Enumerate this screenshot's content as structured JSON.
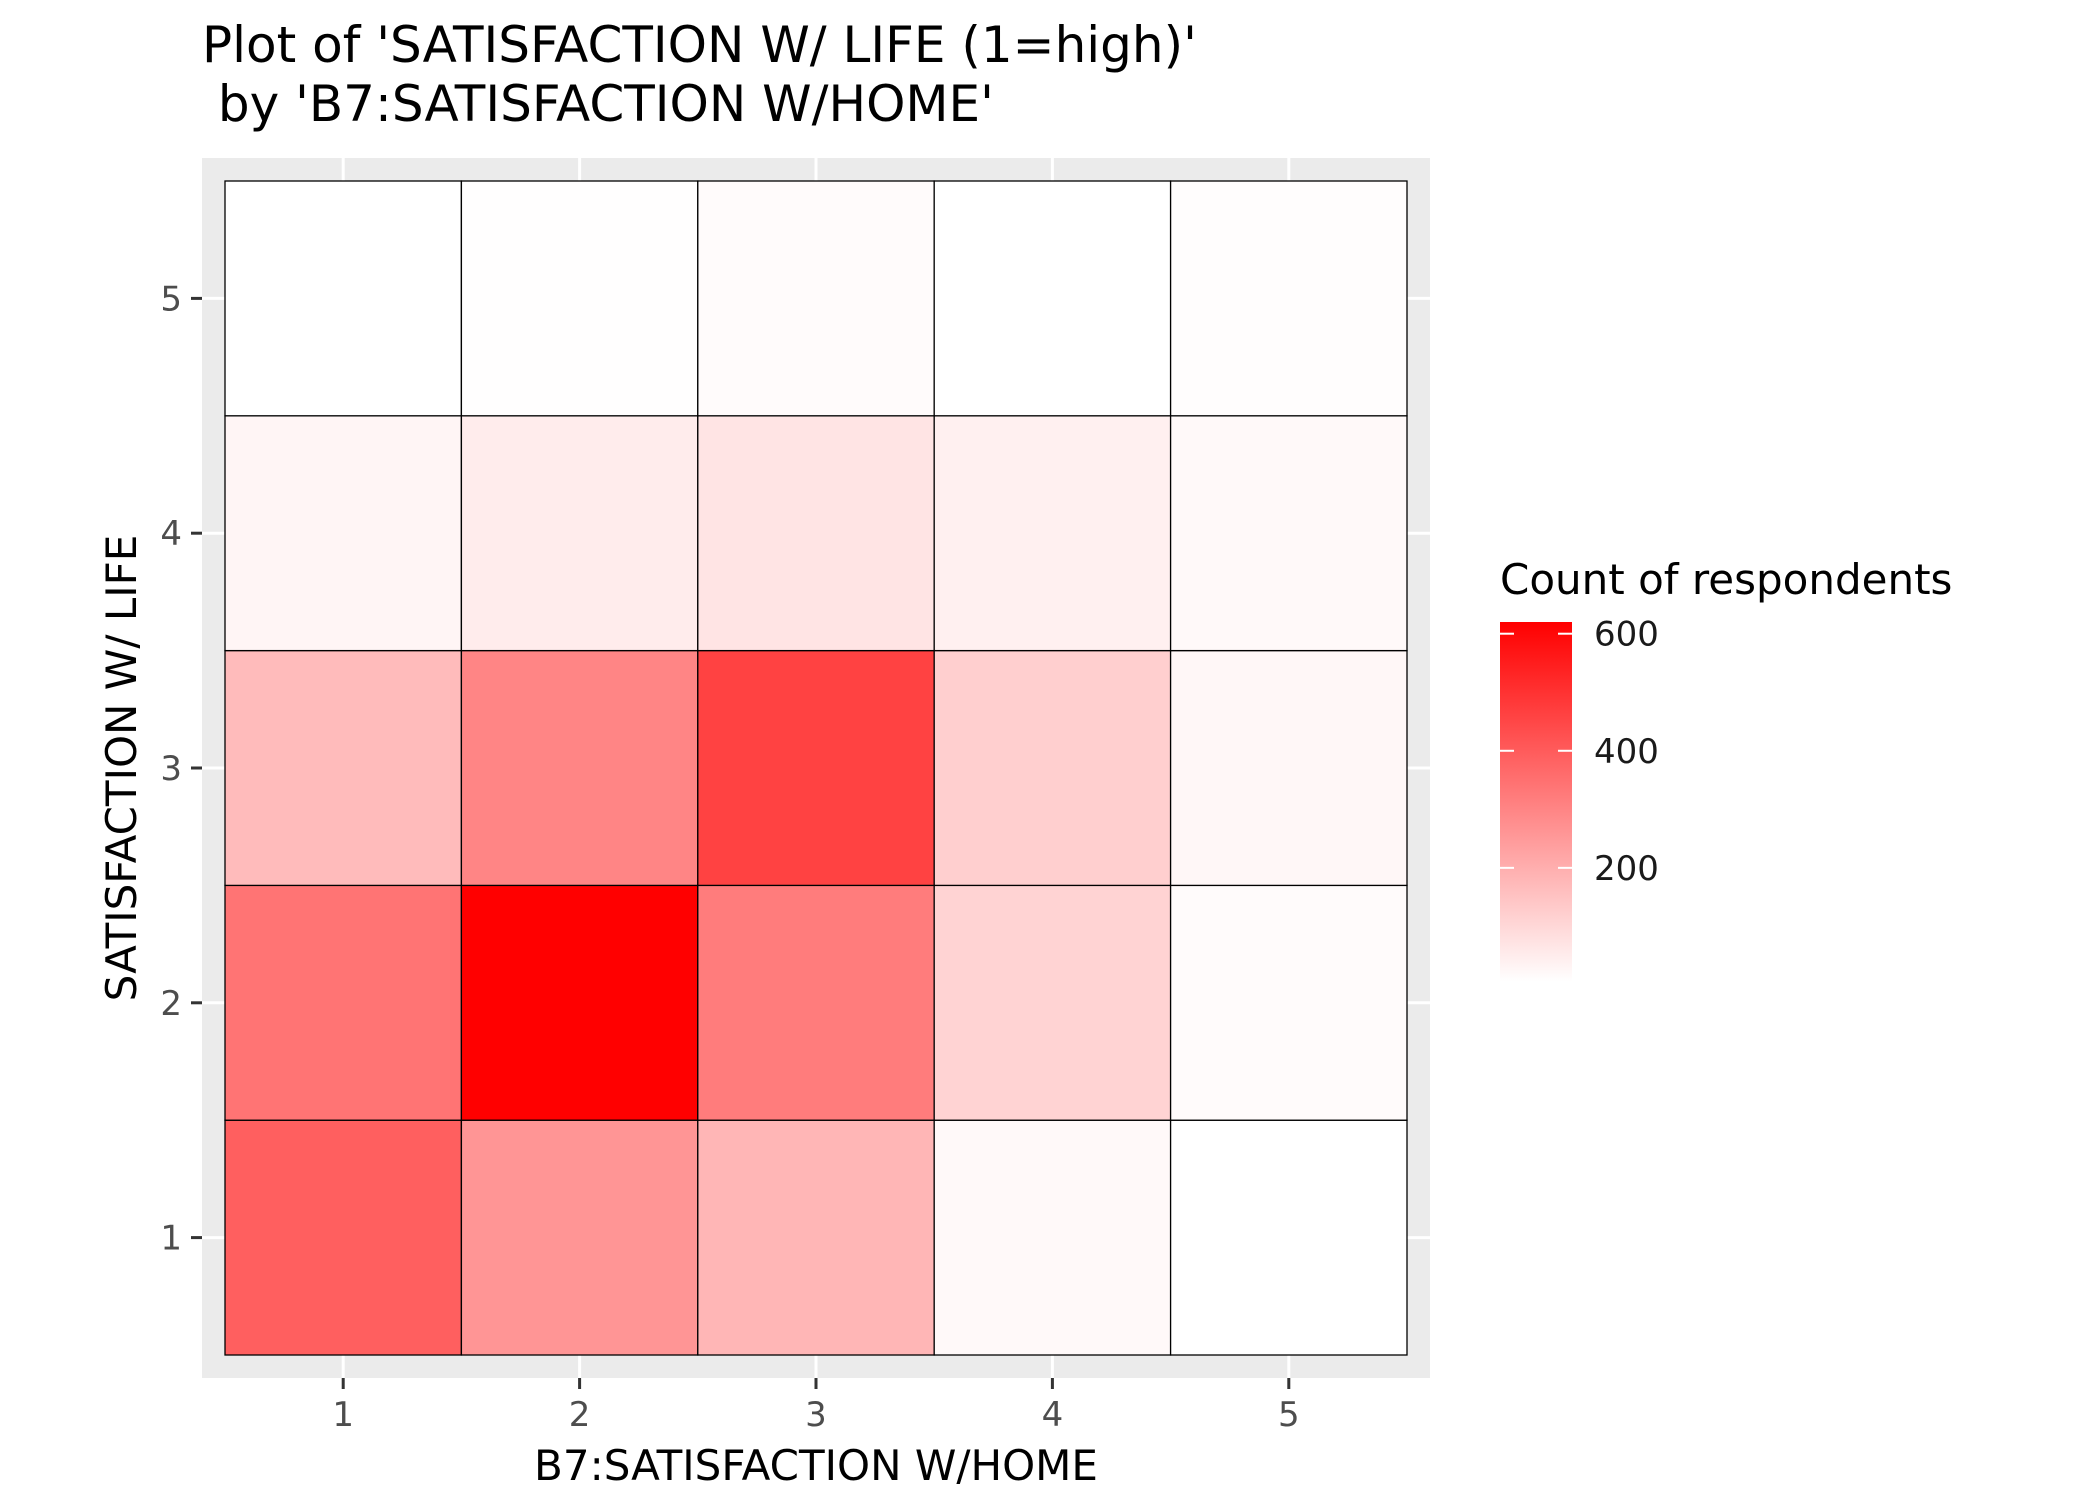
{
  "chart_data": {
    "type": "heatmap",
    "title_line1": "Plot of 'SATISFACTION W/ LIFE (1=high)'",
    "title_line2": " by 'B7:SATISFACTION W/HOME'",
    "xlabel": "B7:SATISFACTION W/HOME",
    "ylabel": "SATISFACTION W/ LIFE",
    "x_categories": [
      "1",
      "2",
      "3",
      "4",
      "5"
    ],
    "y_categories": [
      "1",
      "2",
      "3",
      "4",
      "5"
    ],
    "grid": true,
    "legend": {
      "title": "Count of respondents",
      "position": "right",
      "ticks": [
        "200",
        "400",
        "600"
      ],
      "tick_values": [
        200,
        400,
        600
      ],
      "min": 5,
      "max": 620,
      "low_color": "#ffffff",
      "high_color": "#ff0000"
    },
    "cells": [
      {
        "x": 1,
        "y": 1,
        "value": 390
      },
      {
        "x": 2,
        "y": 1,
        "value": 260
      },
      {
        "x": 3,
        "y": 1,
        "value": 180
      },
      {
        "x": 4,
        "y": 1,
        "value": 20
      },
      {
        "x": 5,
        "y": 1,
        "value": 5
      },
      {
        "x": 1,
        "y": 2,
        "value": 340
      },
      {
        "x": 2,
        "y": 2,
        "value": 620
      },
      {
        "x": 3,
        "y": 2,
        "value": 320
      },
      {
        "x": 4,
        "y": 2,
        "value": 110
      },
      {
        "x": 5,
        "y": 2,
        "value": 15
      },
      {
        "x": 1,
        "y": 3,
        "value": 170
      },
      {
        "x": 2,
        "y": 3,
        "value": 300
      },
      {
        "x": 3,
        "y": 3,
        "value": 460
      },
      {
        "x": 4,
        "y": 3,
        "value": 120
      },
      {
        "x": 5,
        "y": 3,
        "value": 25
      },
      {
        "x": 1,
        "y": 4,
        "value": 30
      },
      {
        "x": 2,
        "y": 4,
        "value": 50
      },
      {
        "x": 3,
        "y": 4,
        "value": 70
      },
      {
        "x": 4,
        "y": 4,
        "value": 40
      },
      {
        "x": 5,
        "y": 4,
        "value": 20
      },
      {
        "x": 1,
        "y": 5,
        "value": 5
      },
      {
        "x": 2,
        "y": 5,
        "value": 8
      },
      {
        "x": 3,
        "y": 5,
        "value": 15
      },
      {
        "x": 4,
        "y": 5,
        "value": 5
      },
      {
        "x": 5,
        "y": 5,
        "value": 10
      }
    ]
  }
}
